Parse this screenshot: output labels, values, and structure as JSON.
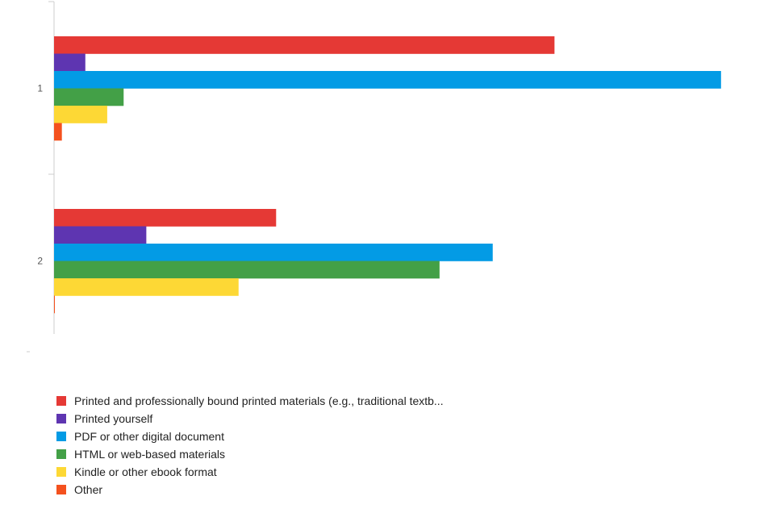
{
  "chart_data": {
    "type": "bar",
    "orientation": "horizontal",
    "categories": [
      "1",
      "2"
    ],
    "series": [
      {
        "name": "Printed and professionally bound printed materials (e.g., traditional textb...",
        "color": "#e53935",
        "values": [
          64,
          28.4
        ]
      },
      {
        "name": "Printed yourself",
        "color": "#5e35b1",
        "values": [
          4,
          11.8
        ]
      },
      {
        "name": "PDF or other digital document",
        "color": "#039be5",
        "values": [
          85.3,
          56.1
        ]
      },
      {
        "name": "HTML or web-based materials",
        "color": "#43a047",
        "values": [
          8.9,
          49.3
        ]
      },
      {
        "name": "Kindle or other ebook format",
        "color": "#fdd835",
        "values": [
          6.8,
          23.6
        ]
      },
      {
        "name": "Other",
        "color": "#f4511e",
        "values": [
          1,
          0.1
        ]
      }
    ],
    "xlim": [
      0,
      88
    ],
    "grid": false,
    "legend_position": "bottom-left",
    "title": "",
    "xlabel": "",
    "ylabel": ""
  }
}
